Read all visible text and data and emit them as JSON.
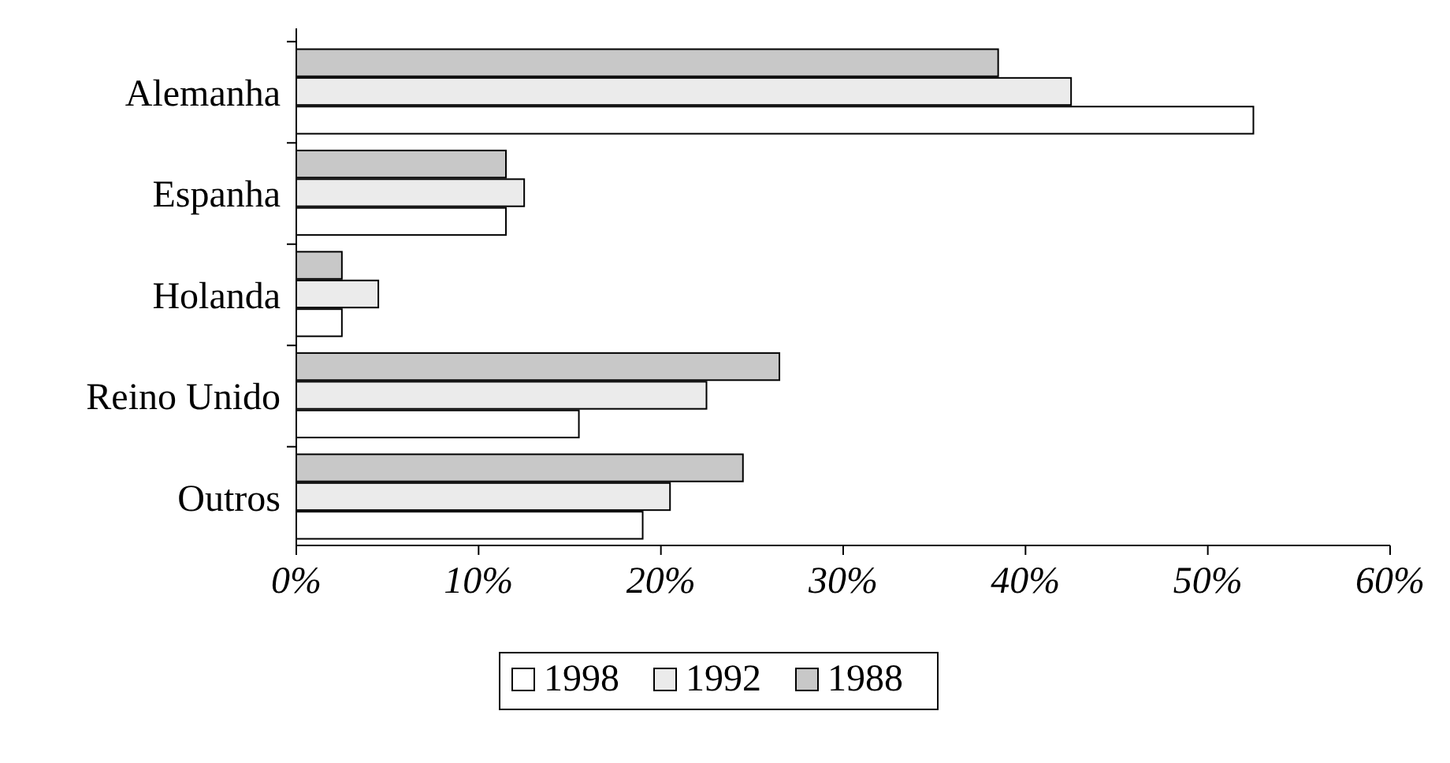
{
  "chart_data": {
    "type": "bar",
    "orientation": "horizontal",
    "categories": [
      "Alemanha",
      "Espanha",
      "Holanda",
      "Reino Unido",
      "Outros"
    ],
    "series": [
      {
        "name": "1998",
        "color": "#ffffff",
        "values": [
          52.5,
          11.5,
          2.5,
          15.5,
          19
        ]
      },
      {
        "name": "1992",
        "color": "#ebebeb",
        "values": [
          42.5,
          12.5,
          4.5,
          22.5,
          20.5
        ]
      },
      {
        "name": "1988",
        "color": "#c8c8c8",
        "values": [
          38.5,
          11.5,
          2.5,
          26.5,
          24.5
        ]
      }
    ],
    "xlim": [
      0,
      60
    ],
    "xticks": [
      {
        "value": 0,
        "label": "0%"
      },
      {
        "value": 10,
        "label": "10%"
      },
      {
        "value": 20,
        "label": "20%"
      },
      {
        "value": 30,
        "label": "30%"
      },
      {
        "value": 40,
        "label": "40%"
      },
      {
        "value": 50,
        "label": "50%"
      },
      {
        "value": 60,
        "label": "60%"
      }
    ],
    "grid": false,
    "legend": "bottom"
  }
}
